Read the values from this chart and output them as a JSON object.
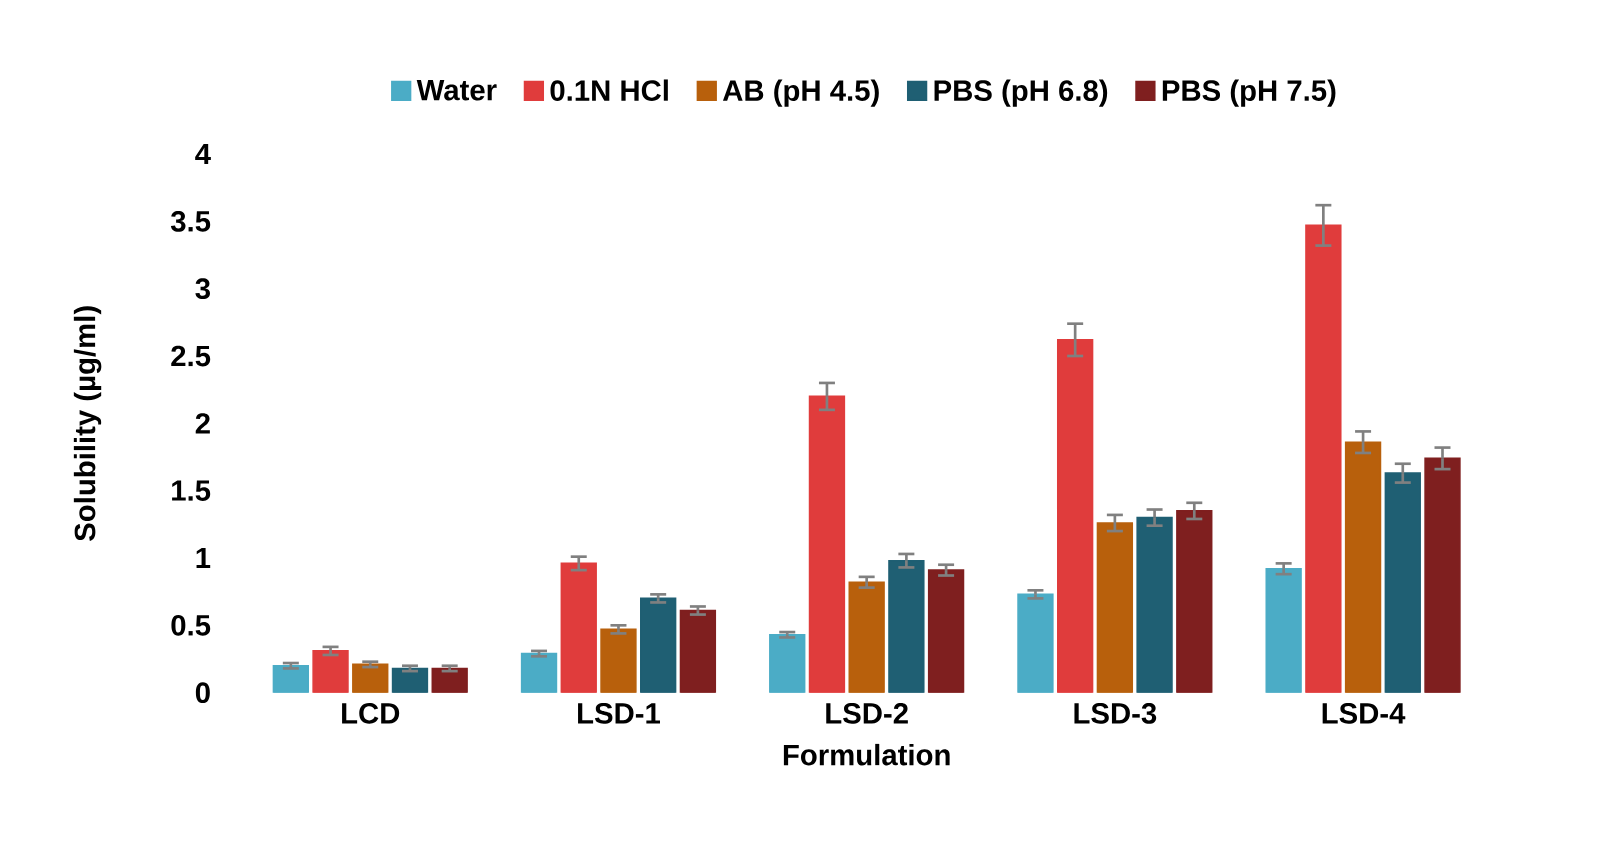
{
  "chart_data": {
    "type": "bar",
    "xlabel": "Formulation",
    "ylabel": "Solubility (µg/ml)",
    "categories": [
      "LCD",
      "LSD-1",
      "LSD-2",
      "LSD-3",
      "LSD-4"
    ],
    "series": [
      {
        "name": "Water",
        "color": "#4bacc6",
        "values": [
          0.2,
          0.29,
          0.43,
          0.73,
          0.92
        ],
        "errors": [
          0.02,
          0.02,
          0.02,
          0.03,
          0.04
        ]
      },
      {
        "name": "0.1N HCl",
        "color": "#e03c3c",
        "values": [
          0.31,
          0.96,
          2.2,
          2.62,
          3.47
        ],
        "errors": [
          0.03,
          0.05,
          0.1,
          0.12,
          0.15
        ]
      },
      {
        "name": "AB (pH 4.5)",
        "color": "#b8600c",
        "values": [
          0.21,
          0.47,
          0.82,
          1.26,
          1.86
        ],
        "errors": [
          0.02,
          0.03,
          0.04,
          0.06,
          0.08
        ]
      },
      {
        "name": "PBS (pH 6.8)",
        "color": "#1f5f73",
        "values": [
          0.18,
          0.7,
          0.98,
          1.3,
          1.63
        ],
        "errors": [
          0.02,
          0.03,
          0.05,
          0.06,
          0.07
        ]
      },
      {
        "name": "PBS (pH 7.5)",
        "color": "#7f1f1f",
        "values": [
          0.18,
          0.61,
          0.91,
          1.35,
          1.74
        ],
        "errors": [
          0.02,
          0.03,
          0.04,
          0.06,
          0.08
        ]
      }
    ],
    "ylim": [
      0,
      4
    ],
    "yticks": [
      0,
      0.5,
      1,
      1.5,
      2,
      2.5,
      3,
      3.5,
      4
    ],
    "grid": false,
    "legend": "top"
  }
}
